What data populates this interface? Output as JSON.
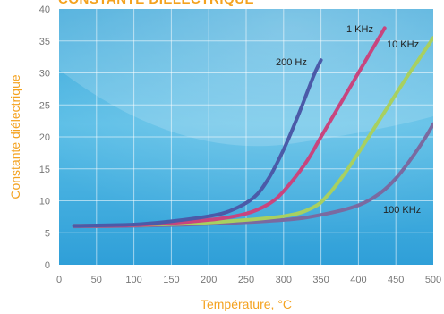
{
  "chart_data": {
    "type": "line",
    "title": "CONSTANTE DIÉLECTRIQUE",
    "xlabel": "Température, °C",
    "ylabel": "Constante diélectrique",
    "xlim": [
      0,
      500
    ],
    "ylim": [
      0,
      40
    ],
    "xticks": [
      0,
      50,
      100,
      150,
      200,
      250,
      300,
      350,
      400,
      450,
      500
    ],
    "yticks": [
      0,
      5,
      10,
      15,
      20,
      25,
      30,
      35,
      40
    ],
    "grid": true,
    "series": [
      {
        "name": "200 Hz",
        "color": "#4b5aa8",
        "x": [
          20,
          100,
          150,
          200,
          230,
          260,
          280,
          300,
          320,
          340,
          350
        ],
        "y": [
          6.1,
          6.3,
          6.8,
          7.6,
          8.5,
          10.5,
          13.5,
          18,
          23.5,
          29.5,
          32
        ]
      },
      {
        "name": "1 KHz",
        "color": "#c8457e",
        "x": [
          20,
          100,
          200,
          250,
          280,
          300,
          330,
          350,
          370,
          400,
          420,
          435
        ],
        "y": [
          6.1,
          6.2,
          7,
          8,
          9.5,
          11.5,
          16,
          20,
          24,
          30,
          34,
          37
        ]
      },
      {
        "name": "10 KHz",
        "color": "#a8d060",
        "x": [
          20,
          100,
          200,
          300,
          340,
          360,
          380,
          400,
          430,
          460,
          480,
          500
        ],
        "y": [
          6.1,
          6.2,
          6.6,
          7.6,
          9,
          11,
          14,
          17.5,
          23,
          28.5,
          32,
          35.5
        ]
      },
      {
        "name": "100 KHz",
        "color": "#7a6aa0",
        "x": [
          20,
          100,
          200,
          300,
          350,
          400,
          430,
          450,
          470,
          490,
          500
        ],
        "y": [
          6,
          6.1,
          6.4,
          7,
          7.8,
          9.3,
          11.3,
          13.5,
          16.5,
          20,
          22
        ]
      }
    ]
  }
}
